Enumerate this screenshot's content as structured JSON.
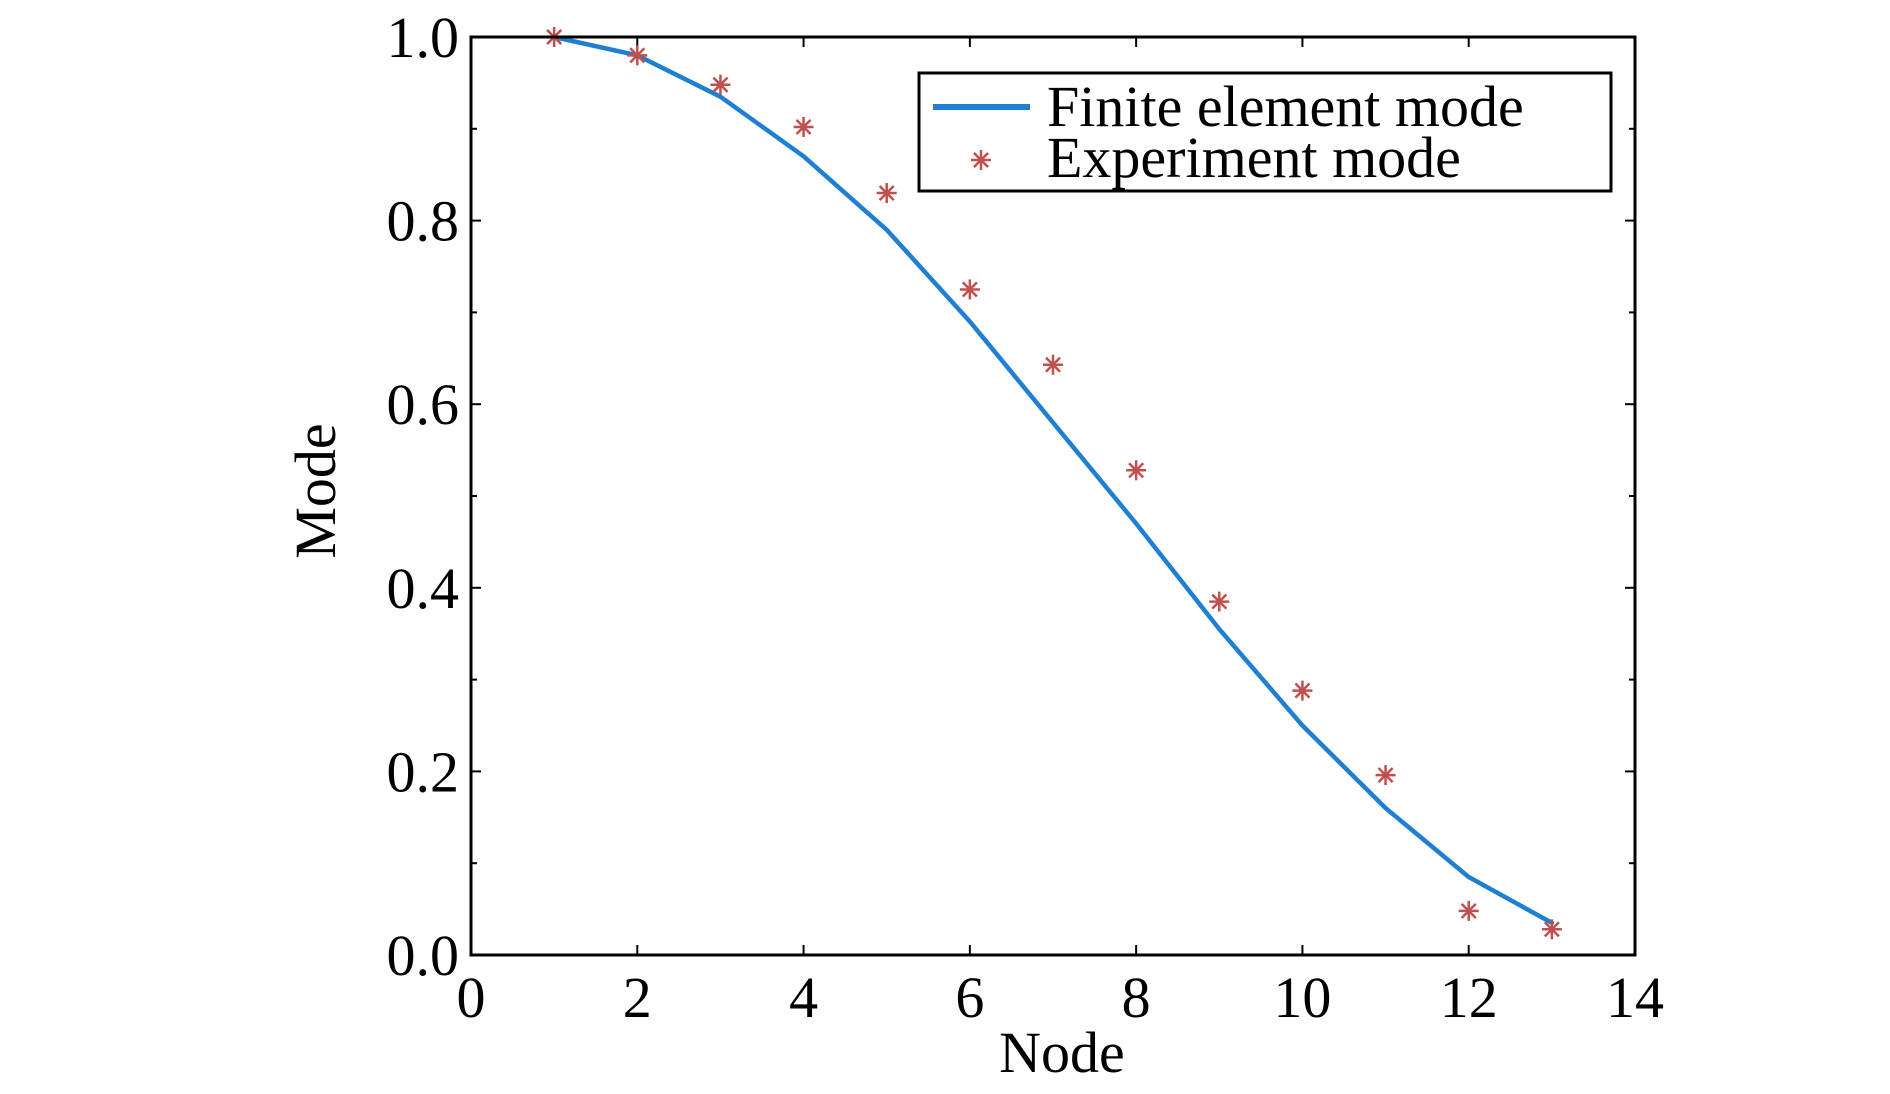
{
  "chart_data": {
    "type": "line",
    "title": "",
    "xlabel": "Node",
    "ylabel": "Mode",
    "xlim": [
      0,
      14
    ],
    "ylim": [
      0.0,
      1.0
    ],
    "x_ticks": [
      0,
      2,
      4,
      6,
      8,
      10,
      12,
      14
    ],
    "x_tick_labels": [
      "0",
      "2",
      "4",
      "6",
      "8",
      "10",
      "12",
      "14"
    ],
    "y_ticks": [
      0.0,
      0.2,
      0.4,
      0.6,
      0.8,
      1.0
    ],
    "y_tick_labels": [
      "0.0",
      "0.2",
      "0.4",
      "0.6",
      "0.8",
      "1.0"
    ],
    "grid": false,
    "legend_position": "top-right",
    "series": [
      {
        "name": "Finite element mode",
        "type": "line",
        "color": "#1f7fd0",
        "x": [
          1,
          2,
          3,
          4,
          5,
          6,
          7,
          8,
          9,
          10,
          11,
          12,
          13
        ],
        "y": [
          1.0,
          0.98,
          0.935,
          0.87,
          0.79,
          0.69,
          0.58,
          0.47,
          0.355,
          0.25,
          0.16,
          0.085,
          0.035
        ]
      },
      {
        "name": "Experiment mode",
        "type": "scatter",
        "marker": "asterisk",
        "color": "#c0504d",
        "x": [
          1,
          2,
          3,
          4,
          5,
          6,
          7,
          8,
          9,
          10,
          11,
          12,
          13
        ],
        "y": [
          1.0,
          0.98,
          0.948,
          0.902,
          0.83,
          0.725,
          0.643,
          0.528,
          0.385,
          0.288,
          0.196,
          0.048,
          0.028
        ]
      }
    ]
  }
}
